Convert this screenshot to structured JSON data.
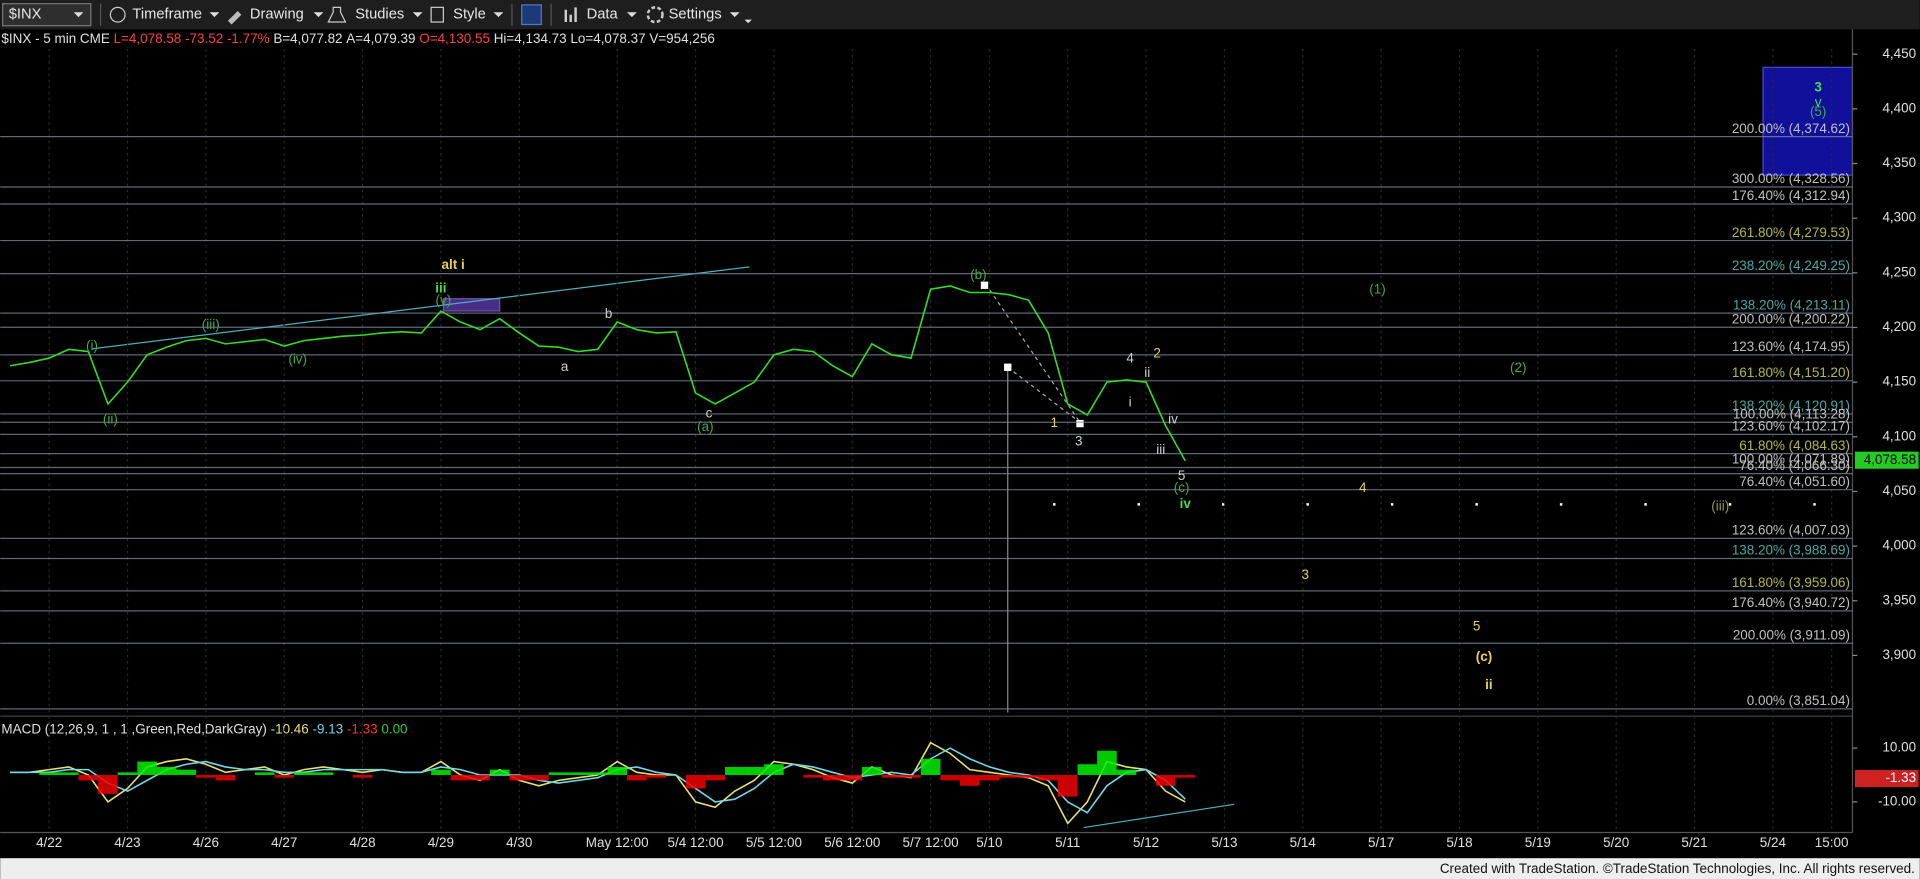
{
  "toolbar": {
    "symbol": "$INX",
    "buttons": [
      "Timeframe",
      "Drawing",
      "Studies",
      "Style",
      "Data",
      "Settings"
    ]
  },
  "header": {
    "symbol": "$INX - 5 min  CME",
    "last": "L=4,078.58",
    "change": "-73.52",
    "pct": "-1.77%",
    "bid": "B=4,077.82",
    "ask": "A=4,079.39",
    "open": "O=4,130.55",
    "high": "Hi=4,134.73",
    "low": "Lo=4,078.37",
    "volume": "V=954,256"
  },
  "macd_header": {
    "label": "MACD (12,26,9, 1 , 1 ,Green,Red,DarkGray)",
    "macd": "-10.46",
    "signal": "-9.13",
    "hist": "-1.33",
    "zero": "0.00"
  },
  "footer": "Created with TradeStation. ©TradeStation Technologies, Inc. All rights reserved.",
  "chart_data": [
    {
      "type": "line",
      "categories": [
        null,
        null,
        "4/22",
        null,
        null,
        null,
        "4/23",
        null,
        null,
        null,
        "4/26",
        null,
        null,
        null,
        "4/27",
        null,
        null,
        null,
        "4/28",
        null,
        null,
        null,
        "4/29",
        null,
        null,
        null,
        "4/30",
        null,
        null,
        null,
        null,
        "May 12:00",
        null,
        null,
        null,
        "5/4 12:00",
        null,
        null,
        null,
        "5/5 12:00",
        null,
        null,
        null,
        "5/6 12:00",
        null,
        null,
        null,
        "5/7 12:00",
        null,
        null,
        "5/10",
        null,
        null,
        null,
        "5/11",
        null,
        null,
        null,
        "5/12",
        null,
        null,
        null,
        "5/13",
        null,
        null,
        null,
        "5/14",
        null,
        null,
        null,
        "5/17",
        null,
        null,
        null,
        "5/18",
        null,
        null,
        null,
        "5/19",
        null,
        null,
        null,
        "5/20",
        null,
        null,
        null,
        "5/21",
        null,
        null,
        null,
        "5/24",
        null,
        null,
        "15:00"
      ],
      "series": [
        {
          "color": "#33dd22",
          "values": [
            4165,
            4168,
            4172,
            4180,
            4178,
            4130,
            4150,
            4175,
            4182,
            4188,
            4190,
            4185,
            4187,
            4189,
            4183,
            4188,
            4190,
            4192,
            4193,
            4195,
            4196,
            4195,
            4215,
            4205,
            4198,
            4208,
            4195,
            4183,
            4182,
            4178,
            4180,
            4205,
            4198,
            4195,
            4196,
            4140,
            4130,
            4140,
            4150,
            4175,
            4180,
            4178,
            4165,
            4155,
            4185,
            4175,
            4172,
            4235,
            4238,
            4232,
            4232,
            4230,
            4225,
            4195,
            4130,
            4120,
            4150,
            4152,
            4150,
            4110,
            4078,
            null,
            null,
            null,
            null,
            null,
            null,
            null,
            null,
            null,
            null,
            null,
            null,
            null,
            null,
            null,
            null,
            null,
            null,
            null,
            null,
            null,
            null,
            null,
            null,
            null,
            null,
            null,
            null,
            null,
            null,
            null,
            null,
            null
          ]
        }
      ],
      "ylim": [
        3850,
        4466
      ],
      "yticks": [
        {
          "value": 3900,
          "label": "3,900"
        },
        {
          "value": 3950,
          "label": "3,950"
        },
        {
          "value": 4000,
          "label": "4,000"
        },
        {
          "value": 4050,
          "label": "4,050"
        },
        {
          "value": 4100,
          "label": "4,100"
        },
        {
          "value": 4150,
          "label": "4,150"
        },
        {
          "value": 4200,
          "label": "4,200"
        },
        {
          "value": 4250,
          "label": "4,250"
        },
        {
          "value": 4300,
          "label": "4,300"
        },
        {
          "value": 4350,
          "label": "4,350"
        },
        {
          "value": 4400,
          "label": "4,400"
        },
        {
          "value": 4450,
          "label": "4,450"
        }
      ],
      "last_value": {
        "value": 4078.58,
        "label": "4,078.58",
        "color": "#22cc22"
      },
      "levels": [
        {
          "value": 4374.62,
          "label": "200.00% (4,374.62)",
          "color": "#c0c0c0"
        },
        {
          "value": 4328.56,
          "label": "300.00% (4,328.56)",
          "color": "#c0c0c0"
        },
        {
          "value": 4312.94,
          "label": "176.40% (4,312.94)",
          "color": "#c0c0c0"
        },
        {
          "value": 4279.53,
          "label": "261.80% (4,279.53)",
          "color": "#b8b840"
        },
        {
          "value": 4249.25,
          "label": "238.20% (4,249.25)",
          "color": "#4aa8a8"
        },
        {
          "value": 4213.11,
          "label": "138.20% (4,213.11)",
          "color": "#4aa8a8"
        },
        {
          "value": 4200.22,
          "label": "200.00% (4,200.22)",
          "color": "#c0c0c0"
        },
        {
          "value": 4174.95,
          "label": "123.60% (4,174.95)",
          "color": "#c0c0c0"
        },
        {
          "value": 4151.2,
          "label": "161.80% (4,151.20)",
          "color": "#b8b840"
        },
        {
          "value": 4120.91,
          "label": "138.20% (4,120.91)",
          "color": "#4aa8a8"
        },
        {
          "value": 4113.28,
          "label": "100.00% (4,113.28)",
          "color": "#c0c0c0"
        },
        {
          "value": 4102.17,
          "label": "123.60% (4,102.17)",
          "color": "#c0c0c0"
        },
        {
          "value": 4084.63,
          "label": "61.80% (4,084.63)",
          "color": "#b8b840"
        },
        {
          "value": 4071.89,
          "label": "100.00% (4,071.89)",
          "color": "#c0c0c0"
        },
        {
          "value": 4066.3,
          "label": "76.40% (4,066.30)",
          "color": "#c0c0c0"
        },
        {
          "value": 4051.6,
          "label": "76.40% (4,051.60)",
          "color": "#c0c0c0"
        },
        {
          "value": 4007.03,
          "label": "123.60% (4,007.03)",
          "color": "#c0c0c0"
        },
        {
          "value": 3988.69,
          "label": "138.20% (3,988.69)",
          "color": "#4aa8a8"
        },
        {
          "value": 3959.06,
          "label": "161.80% (3,959.06)",
          "color": "#b8b840"
        },
        {
          "value": 3940.72,
          "label": "176.40% (3,940.72)",
          "color": "#c0c0c0"
        },
        {
          "value": 3911.09,
          "label": "200.00% (3,911.09)",
          "color": "#c0c0c0"
        },
        {
          "value": 3851.04,
          "label": "0.00% (3,851.04)",
          "color": "#c0c0c0"
        }
      ],
      "annotations": [
        {
          "text": "alt i",
          "color": "#e8d44d"
        },
        {
          "text": "iii",
          "color": "#44dd44"
        },
        {
          "text": "(i)",
          "color": "#44aa44"
        },
        {
          "text": "(ii)",
          "color": "#44aa44"
        },
        {
          "text": "(iii)",
          "color": "#44aa44"
        },
        {
          "text": "(iv)",
          "color": "#44aa44"
        },
        {
          "text": "(v)",
          "color": "#44aa44"
        },
        {
          "text": "a",
          "color": "#d0d0d0"
        },
        {
          "text": "b",
          "color": "#d0d0d0"
        },
        {
          "text": "c",
          "color": "#d0d0d0"
        },
        {
          "text": "(a)",
          "color": "#44aa44"
        },
        {
          "text": "(b)",
          "color": "#44aa44"
        },
        {
          "text": "1",
          "color": "#e8d44d"
        },
        {
          "text": "2",
          "color": "#e8d44d"
        },
        {
          "text": "3",
          "color": "#d0d0d0"
        },
        {
          "text": "4",
          "color": "#d0d0d0"
        },
        {
          "text": "i",
          "color": "#d0d0d0"
        },
        {
          "text": "ii",
          "color": "#d0d0d0"
        },
        {
          "text": "iii",
          "color": "#d0d0d0"
        },
        {
          "text": "iv",
          "color": "#d0d0d0"
        },
        {
          "text": "5",
          "color": "#d0d0d0"
        },
        {
          "text": "(c)",
          "color": "#44aa44"
        },
        {
          "text": "iv",
          "color": "#44dd44"
        },
        {
          "text": "(1)",
          "color": "#44aa44"
        },
        {
          "text": "(2)",
          "color": "#44aa44"
        },
        {
          "text": "4",
          "color": "#e8d44d"
        },
        {
          "text": "3",
          "color": "#e8d44d"
        },
        {
          "text": "5",
          "color": "#e8d44d"
        },
        {
          "text": "(c)",
          "color": "#e8d44d"
        },
        {
          "text": "ii",
          "color": "#e8d44d"
        },
        {
          "text": "3",
          "color": "#44dd44"
        },
        {
          "text": "v",
          "color": "#44dd44"
        },
        {
          "text": "(5)",
          "color": "#44aa44"
        },
        {
          "text": "(iii)",
          "color": "#9a9a30"
        }
      ]
    },
    {
      "type": "line",
      "series": [
        {
          "color": "#e8e070",
          "values": [
            1,
            1,
            2,
            3,
            0,
            -10,
            -5,
            3,
            5,
            6,
            4,
            1,
            2,
            3,
            0,
            2,
            3,
            2,
            1,
            2,
            1,
            1,
            5,
            0,
            -2,
            2,
            -2,
            -4,
            -2,
            -1,
            0,
            5,
            1,
            0,
            0,
            -10,
            -12,
            -6,
            -2,
            5,
            4,
            2,
            -1,
            -3,
            3,
            0,
            -1,
            12,
            8,
            2,
            1,
            0,
            -1,
            -4,
            -18,
            -10,
            5,
            3,
            2,
            -6,
            -10,
            null,
            null,
            null,
            null,
            null,
            null,
            null,
            null,
            null,
            null,
            null,
            null,
            null,
            null,
            null,
            null,
            null,
            null,
            null,
            null,
            null,
            null,
            null,
            null,
            null,
            null,
            null,
            null,
            null,
            null,
            null,
            null,
            null
          ]
        },
        {
          "color": "#70d8e8",
          "values": [
            1,
            1,
            1,
            2,
            2,
            -3,
            -6,
            -2,
            2,
            4,
            5,
            3,
            2,
            2,
            1,
            1,
            2,
            2,
            2,
            2,
            1,
            1,
            3,
            2,
            0,
            0,
            0,
            -2,
            -3,
            -2,
            -1,
            2,
            3,
            1,
            0,
            -5,
            -10,
            -9,
            -5,
            1,
            4,
            3,
            1,
            -1,
            0,
            1,
            0,
            6,
            10,
            6,
            3,
            1,
            0,
            -2,
            -10,
            -14,
            -4,
            1,
            2,
            -2,
            -9,
            null,
            null,
            null,
            null,
            null,
            null,
            null,
            null,
            null,
            null,
            null,
            null,
            null,
            null,
            null,
            null,
            null,
            null,
            null,
            null,
            null,
            null,
            null,
            null,
            null,
            null,
            null,
            null,
            null,
            null,
            null,
            null,
            null
          ]
        },
        {
          "type": "bar",
          "color": "#00ee00",
          "negative_color": "#ee0000",
          "values": [
            0,
            0,
            1,
            1,
            -2,
            -7,
            1,
            5,
            3,
            2,
            -1,
            -2,
            0,
            1,
            -1,
            1,
            1,
            0,
            -1,
            0,
            0,
            0,
            2,
            -2,
            -2,
            2,
            -2,
            -2,
            1,
            1,
            1,
            3,
            -2,
            -1,
            0,
            -5,
            -2,
            3,
            3,
            4,
            0,
            -1,
            -2,
            -2,
            3,
            -1,
            -1,
            6,
            -2,
            -4,
            -2,
            -1,
            -1,
            -2,
            -8,
            4,
            9,
            2,
            0,
            -4,
            -1,
            null,
            null,
            null,
            null,
            null,
            null,
            null,
            null,
            null,
            null,
            null,
            null,
            null,
            null,
            null,
            null,
            null,
            null,
            null,
            null,
            null,
            null,
            null,
            null,
            null,
            null,
            null,
            null,
            null,
            null,
            null,
            null,
            null
          ]
        }
      ],
      "ylim": [
        -20,
        20.5
      ],
      "yticks": [
        {
          "value": 10,
          "label": "10.00"
        },
        {
          "value": -10,
          "label": "-10.00"
        }
      ],
      "last_value": {
        "value": -1.33,
        "label": "-1.33",
        "color": "#cc2222"
      }
    }
  ]
}
